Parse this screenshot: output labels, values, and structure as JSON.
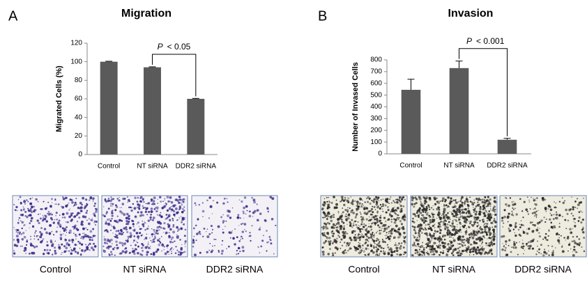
{
  "chart_data": [
    {
      "type": "bar",
      "panel_label": "A",
      "title": "Migration",
      "ylabel": "Migrated Cells (%)",
      "categories": [
        "Control",
        "NT siRNA",
        "DDR2 siRNA"
      ],
      "values": [
        100,
        94,
        60
      ],
      "errors": [
        0.5,
        0.5,
        0.5
      ],
      "color": "#5a5a5a",
      "ylim": [
        0,
        120
      ],
      "yticks": [
        0,
        20,
        40,
        60,
        80,
        100,
        120
      ],
      "annotation": [
        "P",
        "< 0.05"
      ],
      "image_captions": [
        "Control",
        "NT siRNA",
        "DDR2 siRNA"
      ],
      "image_color": "#3a2e8a"
    },
    {
      "type": "bar",
      "panel_label": "B",
      "title": "Invasion",
      "ylabel": "Number of Invased Cells",
      "categories": [
        "Control",
        "NT siRNA",
        "DDR2 siRNA"
      ],
      "values": [
        545,
        730,
        120
      ],
      "errors": [
        90,
        60,
        12
      ],
      "color": "#5a5a5a",
      "ylim": [
        0,
        800
      ],
      "yticks": [
        0,
        100,
        200,
        300,
        400,
        500,
        600,
        700,
        800
      ],
      "annotation": [
        "P",
        "< 0.001"
      ],
      "image_captions": [
        "Control",
        "NT siRNA",
        "DDR2 siRNA"
      ],
      "image_color": "#2b2b2b"
    }
  ]
}
